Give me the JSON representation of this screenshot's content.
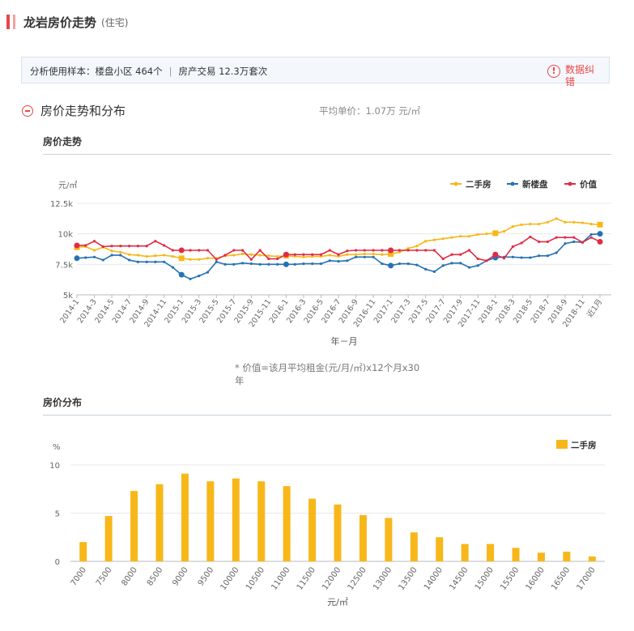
{
  "header": {
    "title": "龙岩房价走势",
    "subtitle": "(住宅)"
  },
  "sample": {
    "label": "分析使用样本：",
    "estates": "楼盘小区 464个",
    "separator": "|",
    "transactions": "房产交易 12.3万套次"
  },
  "error_report": {
    "label": "数据纠错",
    "icon": "exclamation-icon"
  },
  "section": {
    "title": "房价走势和分布",
    "avg_price": "平均单价：1.07万 元/㎡"
  },
  "trend": {
    "subtitle": "房价走势"
  },
  "distribution": {
    "subtitle": "房价分布"
  },
  "note": "* 价值=该月平均租金(元/月/㎡)x12个月x30年",
  "colors": {
    "secondhand": "#f8b719",
    "newhouse": "#2472b5",
    "value": "#e02b45"
  },
  "chart_data": [
    {
      "type": "line",
      "title": "房价走势",
      "ylabel": "元/㎡",
      "xlabel": "年－月",
      "ylim": [
        5000,
        12500
      ],
      "yticks": [
        5000,
        7500,
        10000,
        12500
      ],
      "ytick_labels": [
        "5k",
        "7.5k",
        "10k",
        "12.5k"
      ],
      "legend_position": "top-right",
      "grid": true,
      "x": [
        "2014-1",
        "2014-2",
        "2014-3",
        "2014-4",
        "2014-5",
        "2014-6",
        "2014-7",
        "2014-8",
        "2014-9",
        "2014-10",
        "2014-11",
        "2014-12",
        "2015-1",
        "2015-2",
        "2015-3",
        "2015-4",
        "2015-5",
        "2015-6",
        "2015-7",
        "2015-8",
        "2015-9",
        "2015-10",
        "2015-11",
        "2015-12",
        "2016-1",
        "2016-2",
        "2016-3",
        "2016-4",
        "2016-5",
        "2016-6",
        "2016-7",
        "2016-8",
        "2016-9",
        "2016-10",
        "2016-11",
        "2016-12",
        "2017-1",
        "2017-2",
        "2017-3",
        "2017-4",
        "2017-5",
        "2017-6",
        "2017-7",
        "2017-8",
        "2017-9",
        "2017-10",
        "2017-11",
        "2017-12",
        "2018-1",
        "2018-2",
        "2018-3",
        "2018-4",
        "2018-5",
        "2018-6",
        "2018-7",
        "2018-8",
        "2018-9",
        "2018-10",
        "2018-11",
        "2018-12",
        "近1月"
      ],
      "x_tick_labels": [
        "2014-1",
        "2014-3",
        "2014-5",
        "2014-7",
        "2014-9",
        "2014-11",
        "2015-1",
        "2015-3",
        "2015-5",
        "2015-7",
        "2015-9",
        "2015-11",
        "2016-1",
        "2016-3",
        "2016-5",
        "2016-7",
        "2016-9",
        "2016-11",
        "2017-1",
        "2017-3",
        "2017-5",
        "2017-7",
        "2017-9",
        "2017-11",
        "2018-1",
        "2018-3",
        "2018-5",
        "2018-7",
        "2018-9",
        "2018-11",
        "近1月"
      ],
      "series": [
        {
          "name": "二手房",
          "color": "#f8b719",
          "marker_every": 12,
          "values": [
            8900,
            8950,
            8650,
            8900,
            8600,
            8500,
            8300,
            8250,
            8150,
            8200,
            8250,
            8150,
            8000,
            7900,
            7900,
            8000,
            8000,
            8200,
            8250,
            8350,
            8300,
            8250,
            8200,
            8150,
            8200,
            8150,
            8100,
            8150,
            8150,
            8250,
            8150,
            8300,
            8300,
            8350,
            8350,
            8300,
            8350,
            8500,
            8800,
            9000,
            9400,
            9500,
            9600,
            9700,
            9800,
            9800,
            9950,
            10000,
            10050,
            10200,
            10600,
            10750,
            10800,
            10800,
            10950,
            11250,
            10950,
            10950,
            10900,
            10800,
            10750
          ]
        },
        {
          "name": "新楼盘",
          "color": "#2472b5",
          "marker_every": 12,
          "values": [
            8000,
            8050,
            8100,
            7850,
            8250,
            8250,
            7850,
            7700,
            7700,
            7700,
            7700,
            7250,
            6650,
            6300,
            6550,
            6850,
            7700,
            7500,
            7500,
            7600,
            7550,
            7500,
            7500,
            7500,
            7500,
            7500,
            7550,
            7550,
            7550,
            7800,
            7750,
            7800,
            8100,
            8100,
            8100,
            7550,
            7400,
            7550,
            7550,
            7450,
            7100,
            6900,
            7400,
            7600,
            7600,
            7250,
            7400,
            7800,
            8050,
            8100,
            8100,
            8050,
            8050,
            8200,
            8200,
            8450,
            9200,
            9350,
            9300,
            9950,
            10000
          ]
        },
        {
          "name": "价值",
          "color": "#e02b45",
          "marker_every": 12,
          "values": [
            9050,
            9050,
            9400,
            8950,
            9000,
            9000,
            9000,
            9000,
            9000,
            9400,
            9050,
            8650,
            8650,
            8650,
            8650,
            8650,
            7900,
            8250,
            8650,
            8650,
            7900,
            8650,
            7950,
            7950,
            8300,
            8300,
            8300,
            8300,
            8300,
            8650,
            8300,
            8600,
            8650,
            8650,
            8650,
            8650,
            8650,
            8650,
            8650,
            8650,
            8650,
            8650,
            7950,
            8300,
            8300,
            8650,
            7950,
            7800,
            8300,
            8000,
            8950,
            9250,
            9750,
            9350,
            9350,
            9700,
            9700,
            9700,
            9300,
            9700,
            9350
          ]
        }
      ]
    },
    {
      "type": "bar",
      "title": "房价分布",
      "ylabel": "%",
      "xlabel": "元/㎡",
      "ylim": [
        0,
        10
      ],
      "yticks": [
        0,
        5,
        10
      ],
      "legend_position": "top-right",
      "grid": true,
      "categories": [
        "7000",
        "7500",
        "8000",
        "8500",
        "9000",
        "9500",
        "10000",
        "10500",
        "11000",
        "11500",
        "12000",
        "12500",
        "13000",
        "13500",
        "14000",
        "14500",
        "15000",
        "15500",
        "16000",
        "16500",
        "17000"
      ],
      "series": [
        {
          "name": "二手房",
          "color": "#f8b719",
          "values": [
            2.0,
            4.7,
            7.3,
            8.0,
            9.1,
            8.3,
            8.6,
            8.3,
            7.8,
            6.5,
            5.9,
            4.8,
            4.5,
            3.0,
            2.5,
            1.8,
            1.8,
            1.4,
            0.9,
            1.0,
            0.5
          ]
        }
      ]
    }
  ]
}
